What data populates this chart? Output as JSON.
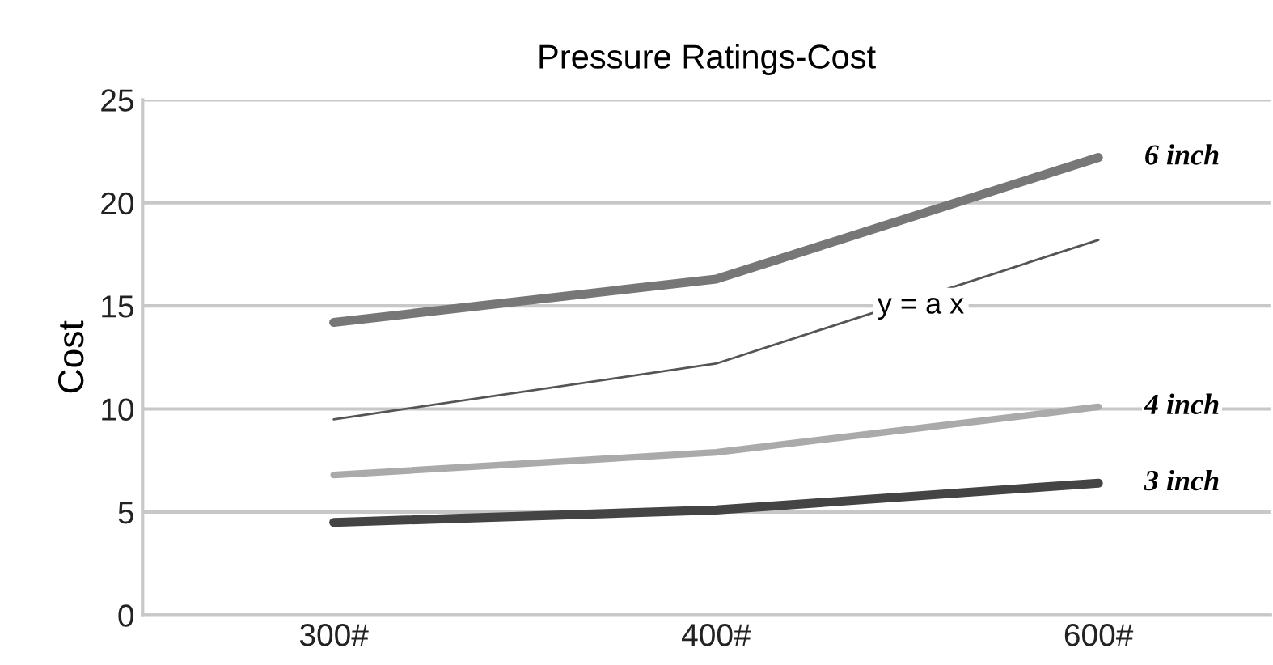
{
  "chart_data": {
    "type": "line",
    "title": "Pressure Ratings-Cost",
    "ylabel": "Cost",
    "categories": [
      "300#",
      "400#",
      "600#"
    ],
    "ylim": [
      0,
      25
    ],
    "yticks": [
      0,
      5,
      10,
      15,
      20,
      25
    ],
    "grid": "y",
    "legend": false,
    "series": [
      {
        "name": "6 inch",
        "color": "#777777",
        "values": [
          14.2,
          16.3,
          22.2
        ]
      },
      {
        "name": "4 inch",
        "color": "#aaaaaa",
        "values": [
          6.8,
          7.9,
          10.1
        ]
      },
      {
        "name": "3 inch",
        "color": "#444444",
        "values": [
          4.5,
          5.1,
          6.4
        ]
      },
      {
        "color": "#555555",
        "type": "line",
        "values": [
          9.5,
          12.2,
          18.2
        ]
      }
    ],
    "annotations": [
      "y = a x"
    ]
  }
}
